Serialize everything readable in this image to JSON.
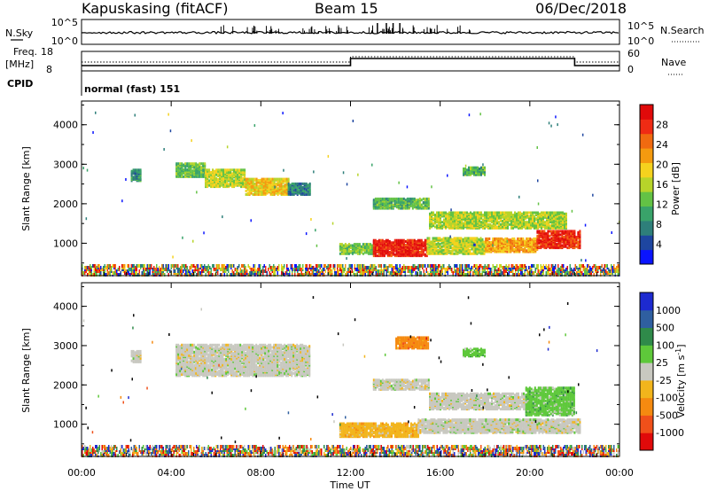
{
  "header": {
    "station": "Kapuskasing (fitACF)",
    "beam": "Beam 15",
    "date": "06/Dec/2018"
  },
  "sky_panel": {
    "left_label": "N.Sky",
    "left_ticks": [
      "10^5",
      "10^0"
    ],
    "right_label": "N.Search",
    "right_ticks": [
      "10^5",
      "10^0"
    ]
  },
  "freq_panel": {
    "left_label_1": "Freq.",
    "left_label_2": "[MHz]",
    "left_ticks": [
      "18",
      "8"
    ],
    "right_label": "Nave",
    "right_ticks": [
      "60",
      "0"
    ]
  },
  "cpid_panel": {
    "label": "CPID",
    "text": "normal (fast) 151"
  },
  "colors": {
    "power_scale": [
      "#0a14ff",
      "#1e46a0",
      "#2e7f7a",
      "#39a36a",
      "#63c245",
      "#b7d42a",
      "#f5d21e",
      "#f49a0f",
      "#f06a10",
      "#ef2b14",
      "#e00a0a"
    ],
    "velocity_scale": [
      "#e00a0a",
      "#f0501a",
      "#f58a10",
      "#f2b51c",
      "#c8c8c0",
      "#5ec83a",
      "#2f8a4a",
      "#2f5fa0",
      "#1d2ad0"
    ]
  },
  "chart_data": [
    {
      "type": "heatmap",
      "name": "power",
      "x_axis": {
        "label": "Time UT",
        "range": [
          "00:00",
          "24:00"
        ],
        "ticks": [
          "00:00",
          "04:00",
          "08:00",
          "12:00",
          "16:00",
          "20:00",
          "00:00"
        ]
      },
      "y_axis": {
        "label": "Slant Range [km]",
        "range": [
          180,
          4600
        ],
        "ticks": [
          1000,
          2000,
          3000,
          4000
        ]
      },
      "colorbar": {
        "label": "Power [dB]",
        "range": [
          0,
          32
        ],
        "ticks": [
          "4",
          "8",
          "12",
          "16",
          "20",
          "24",
          "28"
        ]
      },
      "regions": [
        {
          "t_start": 2.2,
          "t_end": 2.6,
          "r_min": 2550,
          "r_max": 2850,
          "level": 9
        },
        {
          "t_start": 4.2,
          "t_end": 5.5,
          "r_min": 2650,
          "r_max": 3000,
          "level": 13
        },
        {
          "t_start": 5.5,
          "t_end": 7.3,
          "r_min": 2400,
          "r_max": 2850,
          "level": 17
        },
        {
          "t_start": 7.3,
          "t_end": 9.2,
          "r_min": 2200,
          "r_max": 2600,
          "level": 20
        },
        {
          "t_start": 9.2,
          "t_end": 10.2,
          "r_min": 2200,
          "r_max": 2500,
          "level": 8
        },
        {
          "t_start": 13.0,
          "t_end": 15.5,
          "r_min": 1850,
          "r_max": 2100,
          "level": 12
        },
        {
          "t_start": 15.5,
          "t_end": 21.6,
          "r_min": 1350,
          "r_max": 1750,
          "level": 16
        },
        {
          "t_start": 17.0,
          "t_end": 18.0,
          "r_min": 2700,
          "r_max": 2900,
          "level": 12
        },
        {
          "t_start": 11.5,
          "t_end": 13.0,
          "r_min": 700,
          "r_max": 950,
          "level": 14
        },
        {
          "t_start": 13.0,
          "t_end": 15.4,
          "r_min": 650,
          "r_max": 1050,
          "level": 30
        },
        {
          "t_start": 15.4,
          "t_end": 18.0,
          "r_min": 700,
          "r_max": 1100,
          "level": 17
        },
        {
          "t_start": 18.0,
          "t_end": 20.3,
          "r_min": 750,
          "r_max": 1100,
          "level": 22
        },
        {
          "t_start": 20.3,
          "t_end": 22.2,
          "r_min": 850,
          "r_max": 1300,
          "level": 29
        },
        {
          "t_start": 0.0,
          "t_end": 24.0,
          "r_min": 180,
          "r_max": 420,
          "level": 6
        }
      ]
    },
    {
      "type": "heatmap",
      "name": "velocity",
      "x_axis": {
        "label": "Time UT",
        "range": [
          "00:00",
          "24:00"
        ],
        "ticks": [
          "00:00",
          "04:00",
          "08:00",
          "12:00",
          "16:00",
          "20:00",
          "00:00"
        ]
      },
      "y_axis": {
        "label": "Slant Range [km]",
        "range": [
          180,
          4600
        ],
        "ticks": [
          1000,
          2000,
          3000,
          4000
        ]
      },
      "colorbar": {
        "label": "Velocity [m s^-1]",
        "ticks": [
          "1000",
          "500",
          "100",
          "25",
          "-25",
          "-100",
          "-500",
          "-1000"
        ]
      },
      "regions": [
        {
          "t_start": 2.2,
          "t_end": 2.6,
          "r_min": 2550,
          "r_max": 2850,
          "level": 4
        },
        {
          "t_start": 4.2,
          "t_end": 10.2,
          "r_min": 2200,
          "r_max": 3000,
          "level": 4
        },
        {
          "t_start": 13.0,
          "t_end": 15.5,
          "r_min": 1850,
          "r_max": 2100,
          "level": 4
        },
        {
          "t_start": 15.5,
          "t_end": 20.0,
          "r_min": 1350,
          "r_max": 1750,
          "level": 4
        },
        {
          "t_start": 19.8,
          "t_end": 22.0,
          "r_min": 1200,
          "r_max": 1900,
          "level": 5
        },
        {
          "t_start": 17.0,
          "t_end": 18.0,
          "r_min": 2700,
          "r_max": 2900,
          "level": 5
        },
        {
          "t_start": 14.0,
          "t_end": 15.5,
          "r_min": 2900,
          "r_max": 3200,
          "level": 2
        },
        {
          "t_start": 11.5,
          "t_end": 15.0,
          "r_min": 650,
          "r_max": 1000,
          "level": 3
        },
        {
          "t_start": 15.0,
          "t_end": 22.2,
          "r_min": 750,
          "r_max": 1100,
          "level": 4
        },
        {
          "t_start": 0.0,
          "t_end": 24.0,
          "r_min": 180,
          "r_max": 420,
          "level": 3
        }
      ]
    }
  ]
}
